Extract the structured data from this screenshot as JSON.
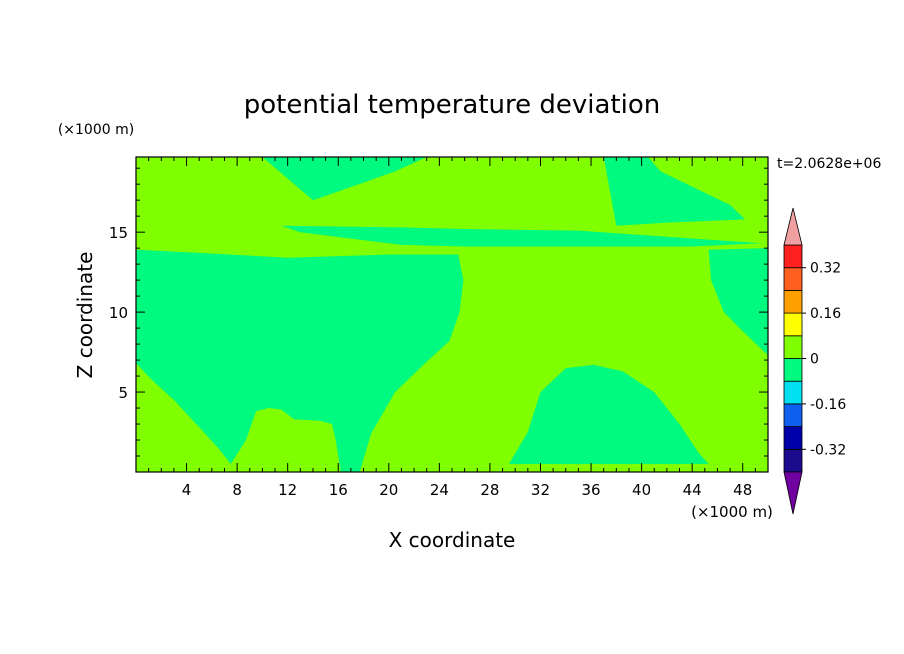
{
  "chart_data": {
    "type": "heatmap",
    "title": "potential temperature deviation",
    "xlabel": "X coordinate",
    "ylabel": "Z coordinate",
    "x_unit": "(×1000 m)",
    "y_unit": "(×1000 m)",
    "time_label": "t=2.0628e+06",
    "xlim": [
      0,
      50
    ],
    "ylim": [
      0,
      19.7
    ],
    "x_ticks": [
      4,
      8,
      12,
      16,
      20,
      24,
      28,
      32,
      36,
      40,
      44,
      48
    ],
    "y_ticks": [
      5,
      10,
      15
    ],
    "background_level": "0 to 0.08",
    "colorbar": {
      "labels": [
        "0.32",
        "0.16",
        "0",
        "-0.16",
        "-0.32"
      ],
      "label_values": [
        0.32,
        0.16,
        0,
        -0.16,
        -0.32
      ],
      "levels": [
        -0.4,
        -0.32,
        -0.24,
        -0.16,
        -0.08,
        0,
        0.08,
        0.16,
        0.24,
        0.32,
        0.4
      ],
      "bin_colors": [
        "#1a0a8c",
        "#0000aa",
        "#1060f0",
        "#00e0f0",
        "#00fa80",
        "#80ff00",
        "#ffff00",
        "#ffa000",
        "#ff6020",
        "#ff2020"
      ],
      "under_color": "#7000a0",
      "over_color": "#f0a0a0"
    },
    "regions": [
      {
        "name": "top-plume",
        "level": "-0.08 to 0",
        "color": "#00fa80",
        "polygon": [
          [
            10,
            19.7
          ],
          [
            23,
            19.7
          ],
          [
            20.5,
            18.8
          ],
          [
            18,
            18.1
          ],
          [
            14,
            17
          ]
        ]
      },
      {
        "name": "upper-right-band",
        "level": "-0.08 to 0",
        "color": "#00fa80",
        "polygon": [
          [
            37,
            19.7
          ],
          [
            40.5,
            19.7
          ],
          [
            41.5,
            18.8
          ],
          [
            47,
            16.7
          ],
          [
            48.2,
            15.8
          ],
          [
            42,
            15.6
          ],
          [
            38,
            15.4
          ]
        ]
      },
      {
        "name": "tropopause-band",
        "level": "-0.08 to 0",
        "color": "#00fa80",
        "polygon": [
          [
            11.5,
            15.4
          ],
          [
            21,
            15.3
          ],
          [
            26,
            15.2
          ],
          [
            35,
            15.1
          ],
          [
            44,
            14.6
          ],
          [
            49.5,
            14.3
          ],
          [
            44,
            14.1
          ],
          [
            35,
            14.1
          ],
          [
            26,
            14.1
          ],
          [
            21,
            14.2
          ],
          [
            13,
            15
          ]
        ]
      },
      {
        "name": "left-cold-pool",
        "level": "-0.08 to 0",
        "color": "#00fa80",
        "polygon": [
          [
            0,
            13.9
          ],
          [
            5,
            13.7
          ],
          [
            12,
            13.4
          ],
          [
            20,
            13.6
          ],
          [
            25.5,
            13.6
          ],
          [
            25.9,
            12
          ],
          [
            25.6,
            10
          ],
          [
            24.8,
            8.2
          ],
          [
            23,
            6.9
          ],
          [
            20.5,
            5
          ],
          [
            18.6,
            2.4
          ],
          [
            17.7,
            0
          ],
          [
            16.2,
            0
          ],
          [
            15.8,
            2
          ],
          [
            15.5,
            3
          ],
          [
            14.5,
            3.2
          ],
          [
            12.5,
            3.3
          ],
          [
            11.5,
            3.9
          ],
          [
            10.5,
            4
          ],
          [
            9.5,
            3.8
          ],
          [
            8.7,
            2
          ],
          [
            7.5,
            0.5
          ],
          [
            6.5,
            1.5
          ],
          [
            5,
            2.8
          ],
          [
            3,
            4.5
          ],
          [
            1.2,
            5.8
          ],
          [
            0,
            6.8
          ]
        ]
      },
      {
        "name": "right-upper-lobe",
        "level": "-0.08 to 0",
        "color": "#00fa80",
        "polygon": [
          [
            45.3,
            13.9
          ],
          [
            45.5,
            12
          ],
          [
            46.5,
            10
          ],
          [
            48,
            8.8
          ],
          [
            50,
            7.3
          ],
          [
            50,
            14
          ]
        ]
      },
      {
        "name": "right-surface-dome",
        "level": "-0.08 to 0",
        "color": "#00fa80",
        "polygon": [
          [
            29.5,
            0.5
          ],
          [
            31,
            2.5
          ],
          [
            32,
            5
          ],
          [
            34,
            6.5
          ],
          [
            36.2,
            6.7
          ],
          [
            38.5,
            6.3
          ],
          [
            41,
            5
          ],
          [
            43,
            3
          ],
          [
            44.5,
            1.2
          ],
          [
            45.3,
            0.5
          ],
          [
            38,
            0.5
          ]
        ]
      }
    ]
  }
}
